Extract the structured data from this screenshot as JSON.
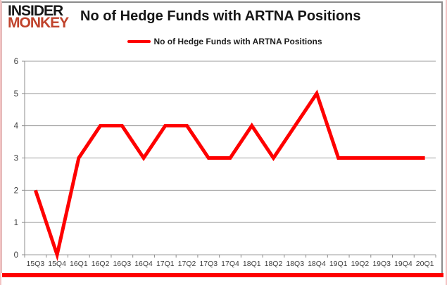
{
  "logo": {
    "line1": "INSIDER",
    "line2": "MONKEY"
  },
  "header": {
    "title": "No of Hedge Funds with ARTNA Positions"
  },
  "legend": {
    "label": "No of Hedge Funds with ARTNA Positions"
  },
  "colors": {
    "line": "#fe0000",
    "grid": "#9b9b9b",
    "axis": "#8c8c8c",
    "tick_text": "#3d3d3d",
    "title_text": "#151515",
    "logo_black": "#161616",
    "logo_red": "#c0432c",
    "bottom_bar": "#fe0000"
  },
  "chart_data": {
    "type": "line",
    "title": "No of Hedge Funds with ARTNA Positions",
    "categories": [
      "15Q3",
      "15Q4",
      "16Q1",
      "16Q2",
      "16Q3",
      "16Q4",
      "17Q1",
      "17Q2",
      "17Q3",
      "17Q4",
      "18Q1",
      "18Q2",
      "18Q3",
      "18Q4",
      "19Q1",
      "19Q2",
      "19Q3",
      "19Q4",
      "20Q1"
    ],
    "series": [
      {
        "name": "No of Hedge Funds with ARTNA Positions",
        "values": [
          2,
          0,
          3,
          4,
          4,
          3,
          4,
          4,
          3,
          3,
          4,
          3,
          4,
          5,
          3,
          3,
          3,
          3,
          3
        ],
        "color": "#fe0000"
      }
    ],
    "xlabel": "",
    "ylabel": "",
    "ylim": [
      0,
      6
    ],
    "ytick_step": 1,
    "grid": true,
    "legend_position": "top-center",
    "line_width": 5
  }
}
